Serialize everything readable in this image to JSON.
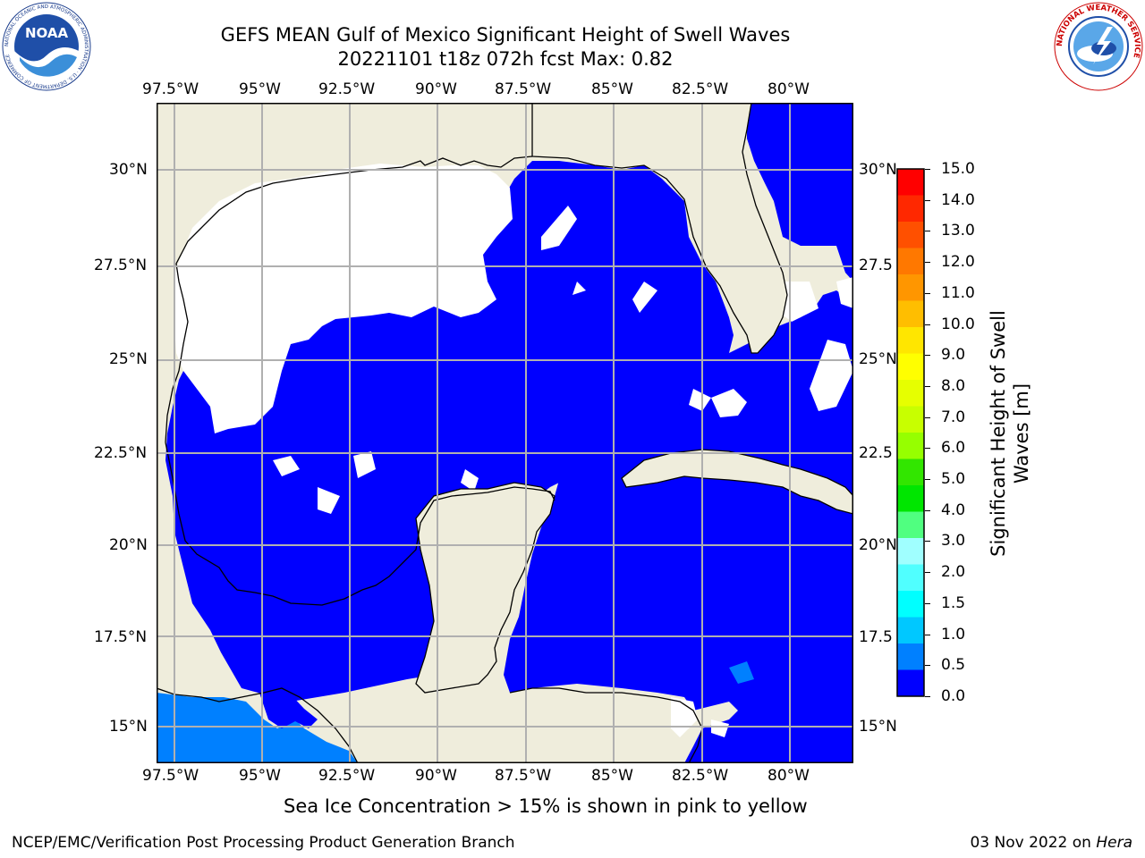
{
  "title": {
    "line1": "GEFS MEAN Gulf of Mexico Significant Height of Swell Waves",
    "line2": "20221101 t18z 072h fcst   Max: 0.82"
  },
  "map": {
    "lon_labels": [
      "97.5°W",
      "95°W",
      "92.5°W",
      "90°W",
      "87.5°W",
      "85°W",
      "82.5°W",
      "80°W"
    ],
    "lat_labels": [
      "30°N",
      "27.5°N",
      "25°N",
      "22.5°N",
      "20°N",
      "17.5°N",
      "15°N"
    ],
    "lat_labels_right": [
      "30°N",
      "27.5",
      "25°N",
      "22.5",
      "20°N",
      "17.5",
      "15°N"
    ],
    "extent": {
      "lon_min": -98,
      "lon_max": -78.2,
      "lat_min": 14,
      "lat_max": 31.8
    },
    "colors": {
      "land": "#efeddc",
      "ocean_calm": "#0000ff",
      "ocean_pacific": "#0080ff",
      "no_data": "#ffffff",
      "grid": "#b0b0b0"
    }
  },
  "colorbar": {
    "label": "Significant Height of Swell Waves [m]",
    "label_line1": "Significant Height of Swell",
    "label_line2": "Waves [m]",
    "ticks": [
      "15.0",
      "14.0",
      "13.0",
      "12.0",
      "11.0",
      "10.0",
      "9.0",
      "8.0",
      "7.0",
      "6.0",
      "5.0",
      "4.0",
      "3.0",
      "2.0",
      "1.5",
      "1.0",
      "0.5",
      "0.0"
    ],
    "colors": [
      "#ff0000",
      "#ff2800",
      "#ff5000",
      "#ff7800",
      "#ff9600",
      "#ffbe00",
      "#ffe600",
      "#ffff00",
      "#e6ff00",
      "#c8ff00",
      "#96ff00",
      "#32e600",
      "#00e600",
      "#50ff80",
      "#a0ffff",
      "#50ffff",
      "#00ffff",
      "#00c8ff",
      "#0080ff",
      "#0000ff"
    ]
  },
  "subtitle": "Sea Ice Concentration > 15% is shown in pink to yellow",
  "footer": {
    "left": "NCEP/EMC/Verification Post Processing Product Generation Branch",
    "right_date": "03 Nov 2022 on ",
    "right_host": "Hera"
  },
  "logos": {
    "noaa": {
      "text": "NOAA",
      "ring": "NATIONAL OCEANIC AND ATMOSPHERIC ADMINISTRATION · U.S. DEPARTMENT OF COMMERCE"
    },
    "nws": {
      "ring": "NATIONAL WEATHER SERVICE"
    }
  }
}
